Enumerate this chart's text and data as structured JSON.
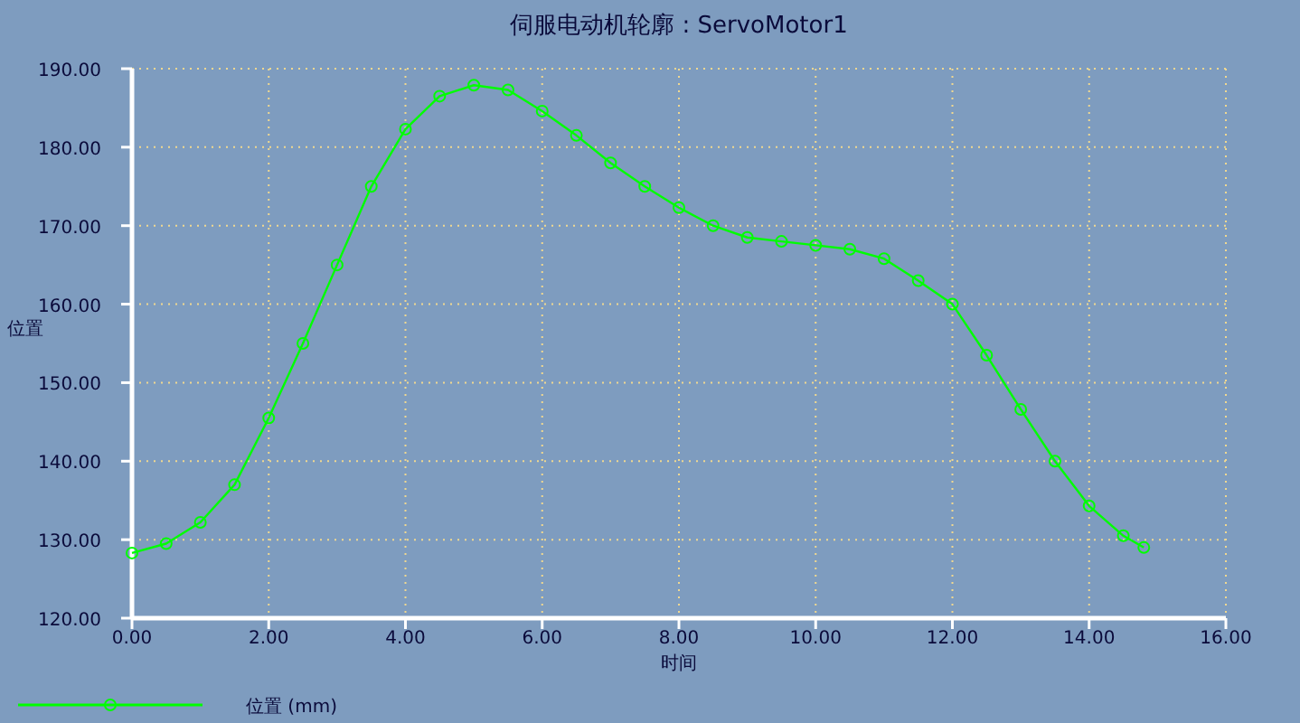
{
  "chart_data": {
    "type": "line",
    "title": "伺服电动机轮廓 : ServoMotor1",
    "xlabel": "时间",
    "ylabel": "位置",
    "x": [
      0,
      0.5,
      1,
      1.5,
      2,
      2.5,
      3,
      3.5,
      4,
      4.5,
      5,
      5.5,
      6,
      6.5,
      7,
      7.5,
      8,
      8.5,
      9,
      9.5,
      10,
      10.5,
      11,
      11.5,
      12,
      12.5,
      13,
      13.5,
      14,
      14.5,
      14.8
    ],
    "series": [
      {
        "name": "位置 (mm)",
        "color": "#00ff00",
        "values": [
          128.3,
          129.5,
          132.2,
          137,
          145.5,
          155,
          165,
          175,
          182.3,
          186.5,
          187.9,
          187.3,
          184.6,
          181.5,
          178,
          175,
          172.3,
          170,
          168.5,
          168,
          167.5,
          167,
          165.8,
          163,
          160,
          153.5,
          146.6,
          140,
          134.3,
          130.5,
          129
        ]
      }
    ],
    "xlim": [
      0,
      16
    ],
    "ylim": [
      120,
      190
    ],
    "xticks": [
      {
        "value": 0,
        "label": "0.00"
      },
      {
        "value": 2,
        "label": "2.00"
      },
      {
        "value": 4,
        "label": "4.00"
      },
      {
        "value": 6,
        "label": "6.00"
      },
      {
        "value": 8,
        "label": "8.00"
      },
      {
        "value": 10,
        "label": "10.00"
      },
      {
        "value": 12,
        "label": "12.00"
      },
      {
        "value": 14,
        "label": "14.00"
      },
      {
        "value": 16,
        "label": "16.00"
      }
    ],
    "yticks": [
      {
        "value": 120,
        "label": "120.00"
      },
      {
        "value": 130,
        "label": "130.00"
      },
      {
        "value": 140,
        "label": "140.00"
      },
      {
        "value": 150,
        "label": "150.00"
      },
      {
        "value": 160,
        "label": "160.00"
      },
      {
        "value": 170,
        "label": "170.00"
      },
      {
        "value": 180,
        "label": "180.00"
      },
      {
        "value": 190,
        "label": "190.00"
      }
    ],
    "grid": true,
    "legend": "bottom left",
    "marker": "circle",
    "line_style": "solid"
  }
}
